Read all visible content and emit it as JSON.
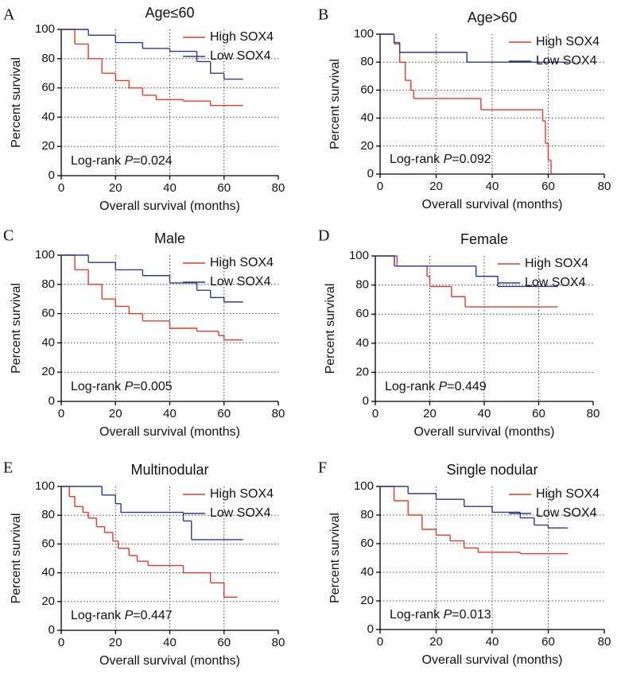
{
  "chart_data": [
    {
      "type": "line",
      "step": true,
      "panel": "A",
      "title": "Age≤60",
      "xlabel": "Overall survival (months)",
      "ylabel": "Percent survival",
      "annotation": [
        "Log-rank ",
        "P",
        "=0.024"
      ],
      "xlim": [
        0,
        80
      ],
      "ylim": [
        0,
        100
      ],
      "xticks": [
        0,
        20,
        40,
        60,
        80
      ],
      "yticks": [
        0,
        20,
        40,
        60,
        80,
        100
      ],
      "grid": true,
      "legend": "upper right",
      "series": [
        {
          "name": "High SOX4",
          "color": "#e8392c",
          "x": [
            0,
            5,
            10,
            15,
            20,
            25,
            30,
            35,
            45,
            55,
            67
          ],
          "values": [
            100,
            90,
            80,
            70,
            65,
            60,
            55,
            52,
            51,
            48,
            48
          ]
        },
        {
          "name": "Low SOX4",
          "color": "#2b3a8f",
          "x": [
            0,
            10,
            20,
            30,
            40,
            50,
            55,
            60,
            67
          ],
          "values": [
            100,
            96,
            91,
            87,
            85,
            78,
            70,
            66,
            66
          ]
        }
      ]
    },
    {
      "type": "line",
      "step": true,
      "panel": "B",
      "title": "Age>60",
      "xlabel": "Overall survival (months)",
      "ylabel": "Percent survival",
      "annotation": [
        "Log-rank ",
        "P",
        "=0.092"
      ],
      "xlim": [
        0,
        80
      ],
      "ylim": [
        0,
        100
      ],
      "xticks": [
        0,
        20,
        40,
        60,
        80
      ],
      "yticks": [
        0,
        20,
        40,
        60,
        80,
        100
      ],
      "grid": true,
      "legend": "upper right",
      "series": [
        {
          "name": "High SOX4",
          "color": "#e8392c",
          "x": [
            0,
            5,
            7,
            9,
            11,
            12,
            36,
            58,
            59,
            60,
            61
          ],
          "values": [
            100,
            93,
            80,
            67,
            60,
            54,
            46,
            38,
            22,
            10,
            0
          ]
        },
        {
          "name": "Low SOX4",
          "color": "#2b3a8f",
          "x": [
            0,
            5,
            7,
            31,
            67
          ],
          "values": [
            100,
            94,
            87,
            80,
            80
          ]
        }
      ]
    },
    {
      "type": "line",
      "step": true,
      "panel": "C",
      "title": "Male",
      "xlabel": "Overall survival (months)",
      "ylabel": "Percent survival",
      "annotation": [
        "Log-rank ",
        "P",
        "=0.005"
      ],
      "xlim": [
        0,
        80
      ],
      "ylim": [
        0,
        100
      ],
      "xticks": [
        0,
        20,
        40,
        60,
        80
      ],
      "yticks": [
        0,
        20,
        40,
        60,
        80,
        100
      ],
      "grid": true,
      "legend": "upper right",
      "series": [
        {
          "name": "High SOX4",
          "color": "#e8392c",
          "x": [
            0,
            5,
            10,
            15,
            20,
            25,
            30,
            40,
            50,
            58,
            60,
            67
          ],
          "values": [
            100,
            90,
            80,
            70,
            65,
            60,
            55,
            50,
            48,
            45,
            42,
            42
          ]
        },
        {
          "name": "Low SOX4",
          "color": "#2b3a8f",
          "x": [
            0,
            10,
            20,
            30,
            40,
            50,
            55,
            60,
            67
          ],
          "values": [
            100,
            95,
            90,
            86,
            81,
            76,
            71,
            68,
            68
          ]
        }
      ]
    },
    {
      "type": "line",
      "step": true,
      "panel": "D",
      "title": "Female",
      "xlabel": "Overall survival (months)",
      "ylabel": "Percent survival",
      "annotation": [
        "Log-rank ",
        "P",
        "=0.449"
      ],
      "xlim": [
        0,
        80
      ],
      "ylim": [
        0,
        100
      ],
      "xticks": [
        0,
        20,
        40,
        60,
        80
      ],
      "yticks": [
        0,
        20,
        40,
        60,
        80,
        100
      ],
      "grid": true,
      "legend": "upper right",
      "series": [
        {
          "name": "High SOX4",
          "color": "#e8392c",
          "x": [
            0,
            8,
            19,
            20,
            28,
            33,
            67
          ],
          "values": [
            100,
            93,
            86,
            79,
            72,
            65,
            65
          ]
        },
        {
          "name": "Low SOX4",
          "color": "#2b3a8f",
          "x": [
            0,
            7,
            37,
            45,
            67
          ],
          "values": [
            100,
            93,
            86,
            79,
            79
          ]
        }
      ]
    },
    {
      "type": "line",
      "step": true,
      "panel": "E",
      "title": "Multinodular",
      "xlabel": "Overall survival (months)",
      "ylabel": "Percent survival",
      "annotation": [
        "Log-rank ",
        "P",
        "=0.447"
      ],
      "xlim": [
        0,
        80
      ],
      "ylim": [
        0,
        100
      ],
      "xticks": [
        0,
        20,
        40,
        60,
        80
      ],
      "yticks": [
        0,
        20,
        40,
        60,
        80,
        100
      ],
      "grid": true,
      "legend": "upper right",
      "series": [
        {
          "name": "High SOX4",
          "color": "#e8392c",
          "x": [
            0,
            3,
            5,
            8,
            10,
            13,
            16,
            19,
            21,
            25,
            28,
            32,
            45,
            55,
            60,
            65
          ],
          "values": [
            100,
            93,
            86,
            82,
            78,
            72,
            68,
            62,
            57,
            52,
            48,
            45,
            40,
            33,
            23,
            23
          ]
        },
        {
          "name": "Low SOX4",
          "color": "#2b3a8f",
          "x": [
            0,
            15,
            20,
            22,
            45,
            48,
            67
          ],
          "values": [
            100,
            94,
            88,
            82,
            76,
            63,
            63
          ]
        }
      ]
    },
    {
      "type": "line",
      "step": true,
      "panel": "F",
      "title": "Single nodular",
      "xlabel": "Overall survival (months)",
      "ylabel": "Percent survival",
      "annotation": [
        "Log-rank ",
        "P",
        "=0.013"
      ],
      "xlim": [
        0,
        80
      ],
      "ylim": [
        0,
        100
      ],
      "xticks": [
        0,
        20,
        40,
        60,
        80
      ],
      "yticks": [
        0,
        20,
        40,
        60,
        80,
        100
      ],
      "grid": true,
      "legend": "upper right",
      "series": [
        {
          "name": "High SOX4",
          "color": "#e8392c",
          "x": [
            0,
            5,
            10,
            15,
            20,
            25,
            30,
            35,
            50,
            67
          ],
          "values": [
            100,
            90,
            80,
            70,
            66,
            62,
            57,
            54,
            53,
            53
          ]
        },
        {
          "name": "Low SOX4",
          "color": "#2b3a8f",
          "x": [
            0,
            10,
            20,
            30,
            40,
            50,
            55,
            60,
            67
          ],
          "values": [
            100,
            95,
            91,
            86,
            82,
            78,
            73,
            71,
            71
          ]
        }
      ]
    }
  ]
}
